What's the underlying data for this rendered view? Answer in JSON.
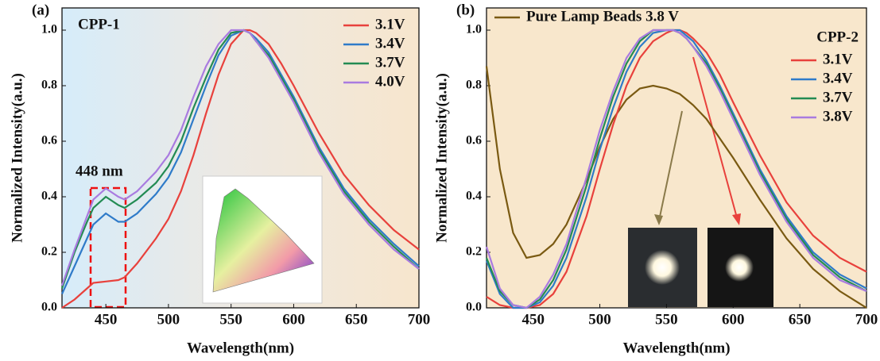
{
  "chart_data": [
    {
      "type": "line",
      "panel_label": "(a)",
      "annotations": [
        "CPP-1",
        "448 nm"
      ],
      "xlabel": "Wavelength(nm)",
      "ylabel": "Normalized Intensity(a.u.)",
      "xlim": [
        415,
        700
      ],
      "ylim": [
        0,
        1.08
      ],
      "xticks": [
        450,
        500,
        550,
        600,
        650,
        700
      ],
      "yticks": [
        {
          "value": 0,
          "label": "0.0"
        },
        0.2,
        0.4,
        0.6,
        0.8,
        {
          "value": 1,
          "label": "1.0"
        }
      ],
      "legend": "upper right",
      "x": [
        415,
        425,
        435,
        440,
        450,
        460,
        465,
        475,
        490,
        500,
        510,
        520,
        530,
        540,
        550,
        560,
        565,
        570,
        580,
        590,
        600,
        620,
        640,
        660,
        680,
        700
      ],
      "series": [
        {
          "name": "3.1V",
          "color": "#e8413c",
          "values": [
            0,
            0.03,
            0.07,
            0.09,
            0.095,
            0.1,
            0.11,
            0.16,
            0.25,
            0.32,
            0.42,
            0.55,
            0.7,
            0.84,
            0.95,
            1.0,
            1.0,
            0.99,
            0.95,
            0.88,
            0.8,
            0.63,
            0.48,
            0.37,
            0.28,
            0.21
          ]
        },
        {
          "name": "3.4V",
          "color": "#2f7bc9",
          "values": [
            0.05,
            0.15,
            0.25,
            0.3,
            0.34,
            0.31,
            0.31,
            0.34,
            0.41,
            0.47,
            0.56,
            0.68,
            0.8,
            0.91,
            0.98,
            1.0,
            0.99,
            0.97,
            0.92,
            0.84,
            0.76,
            0.58,
            0.43,
            0.32,
            0.23,
            0.15
          ]
        },
        {
          "name": "3.7V",
          "color": "#238b53",
          "values": [
            0.07,
            0.2,
            0.31,
            0.36,
            0.4,
            0.37,
            0.36,
            0.39,
            0.45,
            0.51,
            0.6,
            0.72,
            0.83,
            0.93,
            0.99,
            1.0,
            0.99,
            0.96,
            0.91,
            0.83,
            0.75,
            0.57,
            0.42,
            0.31,
            0.22,
            0.14
          ]
        },
        {
          "name": "4.0V",
          "color": "#a97be0",
          "values": [
            0.08,
            0.21,
            0.33,
            0.39,
            0.43,
            0.4,
            0.39,
            0.42,
            0.49,
            0.55,
            0.64,
            0.76,
            0.87,
            0.95,
            1.0,
            1.0,
            0.99,
            0.96,
            0.9,
            0.82,
            0.74,
            0.56,
            0.41,
            0.3,
            0.21,
            0.14
          ]
        }
      ]
    },
    {
      "type": "line",
      "panel_label": "(b)",
      "annotations": [
        "CPP-2"
      ],
      "xlabel": "Wavelength(nm)",
      "ylabel": "Normalized Intensity(a.u.)",
      "xlim": [
        415,
        700
      ],
      "ylim": [
        0,
        1.08
      ],
      "xticks": [
        450,
        500,
        550,
        600,
        650,
        700
      ],
      "yticks": [
        {
          "value": 0,
          "label": "0.0"
        },
        0.2,
        0.4,
        0.6,
        0.8,
        {
          "value": 1,
          "label": "1.0"
        }
      ],
      "legend": "upper right",
      "x": [
        415,
        425,
        435,
        445,
        455,
        465,
        475,
        490,
        500,
        510,
        520,
        530,
        540,
        550,
        555,
        560,
        565,
        570,
        580,
        590,
        600,
        620,
        640,
        660,
        680,
        700
      ],
      "series": [
        {
          "name": "Pure Lamp Beads 3.8 V",
          "color": "#7a5a12",
          "values": [
            0.87,
            0.5,
            0.27,
            0.18,
            0.19,
            0.23,
            0.3,
            0.46,
            0.58,
            0.68,
            0.75,
            0.79,
            0.8,
            0.79,
            0.78,
            0.77,
            0.75,
            0.73,
            0.68,
            0.61,
            0.54,
            0.39,
            0.25,
            0.14,
            0.06,
            0.0
          ]
        },
        {
          "name": "3.1V",
          "color": "#e8413c",
          "values": [
            0.04,
            0.01,
            0,
            0,
            0.01,
            0.05,
            0.13,
            0.33,
            0.5,
            0.66,
            0.8,
            0.9,
            0.96,
            0.99,
            1.0,
            1.0,
            0.99,
            0.97,
            0.92,
            0.84,
            0.74,
            0.55,
            0.38,
            0.26,
            0.18,
            0.13
          ]
        },
        {
          "name": "3.4V",
          "color": "#2f7bc9",
          "values": [
            0.17,
            0.05,
            0,
            0,
            0.02,
            0.08,
            0.18,
            0.4,
            0.57,
            0.72,
            0.85,
            0.94,
            0.99,
            1.0,
            1.0,
            1.0,
            0.98,
            0.96,
            0.89,
            0.8,
            0.7,
            0.5,
            0.33,
            0.2,
            0.12,
            0.07
          ]
        },
        {
          "name": "3.7V",
          "color": "#238b53",
          "values": [
            0.18,
            0.06,
            0.01,
            0,
            0.03,
            0.1,
            0.21,
            0.44,
            0.61,
            0.76,
            0.88,
            0.96,
            1.0,
            1.0,
            1.0,
            0.99,
            0.97,
            0.94,
            0.88,
            0.79,
            0.69,
            0.49,
            0.32,
            0.19,
            0.11,
            0.06
          ]
        },
        {
          "name": "3.8V",
          "color": "#a97be0",
          "values": [
            0.22,
            0.07,
            0.01,
            0,
            0.04,
            0.12,
            0.23,
            0.47,
            0.64,
            0.78,
            0.9,
            0.97,
            1.0,
            1.0,
            1.0,
            0.99,
            0.97,
            0.94,
            0.87,
            0.78,
            0.68,
            0.48,
            0.31,
            0.18,
            0.1,
            0.06
          ]
        }
      ]
    }
  ]
}
